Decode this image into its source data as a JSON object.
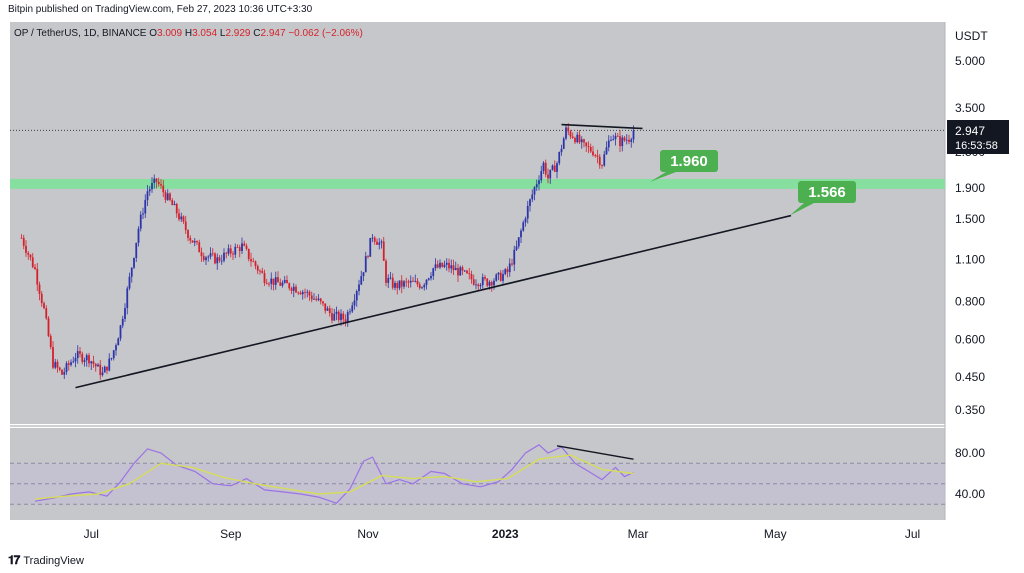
{
  "publisher": {
    "text": "Bitpin published on TradingView.com, Feb 27, 2023 10:36 UTC+3:30"
  },
  "symbol": {
    "name": "OP / TetherUS, 1D, BINANCE",
    "open_key": "O",
    "open": "3.009",
    "high_key": "H",
    "high": "3.054",
    "low_key": "L",
    "low": "2.929",
    "close_key": "C",
    "close": "2.947",
    "change": "−0.062 (−2.06%)"
  },
  "logo": {
    "text": "TradingView",
    "icon": "tradingview-logo-icon"
  },
  "colors": {
    "panel": "#c6c7ca",
    "up": "#2b34a8",
    "down": "#d4202c",
    "level": "#7ee19a",
    "label_green": "#4caf50",
    "rsi_band": "#c2bdd6",
    "rsi_line": "#9c72e6",
    "rsi_ma": "#d6dd5a"
  },
  "chart_data": [
    {
      "type": "candlestick",
      "title": "",
      "y_axis_unit": "USDT",
      "y_scale": "log",
      "ylim": [
        0.32,
        6.5
      ],
      "y_ticks": [
        "5.000",
        "3.500",
        "2.500",
        "1.900",
        "1.500",
        "1.100",
        "0.800",
        "0.600",
        "0.450",
        "0.350"
      ],
      "x_ticks": [
        "Jul",
        "Sep",
        "Nov",
        "2023",
        "Mar",
        "May",
        "Jul"
      ],
      "last_price": "2.947",
      "countdown": "16:53:58",
      "levels": [
        {
          "label": "1.960",
          "value": 1.96
        },
        {
          "label": "1.566",
          "value": 1.566
        }
      ],
      "trendlines": [
        "ascending support",
        "descending resistance"
      ],
      "series": [
        {
          "kind": "close_path",
          "points": [
            [
              "2022-05-31",
              1.3
            ],
            [
              "2022-06-06",
              1.02
            ],
            [
              "2022-06-10",
              0.75
            ],
            [
              "2022-06-14",
              0.5
            ],
            [
              "2022-06-18",
              0.46
            ],
            [
              "2022-06-24",
              0.53
            ],
            [
              "2022-06-30",
              0.52
            ],
            [
              "2022-07-06",
              0.46
            ],
            [
              "2022-07-10",
              0.52
            ],
            [
              "2022-07-14",
              0.66
            ],
            [
              "2022-07-18",
              0.95
            ],
            [
              "2022-07-22",
              1.4
            ],
            [
              "2022-07-26",
              1.86
            ],
            [
              "2022-07-30",
              2.0
            ],
            [
              "2022-08-03",
              1.8
            ],
            [
              "2022-08-08",
              1.58
            ],
            [
              "2022-08-14",
              1.3
            ],
            [
              "2022-08-20",
              1.14
            ],
            [
              "2022-08-26",
              1.1
            ],
            [
              "2022-09-02",
              1.18
            ],
            [
              "2022-09-06",
              1.22
            ],
            [
              "2022-09-10",
              1.1
            ],
            [
              "2022-09-16",
              0.96
            ],
            [
              "2022-09-22",
              0.92
            ],
            [
              "2022-09-28",
              0.9
            ],
            [
              "2022-10-04",
              0.86
            ],
            [
              "2022-10-10",
              0.8
            ],
            [
              "2022-10-16",
              0.72
            ],
            [
              "2022-10-22",
              0.7
            ],
            [
              "2022-10-26",
              0.84
            ],
            [
              "2022-10-30",
              1.03
            ],
            [
              "2022-11-03",
              1.33
            ],
            [
              "2022-11-07",
              1.22
            ],
            [
              "2022-11-09",
              0.95
            ],
            [
              "2022-11-13",
              0.9
            ],
            [
              "2022-11-19",
              0.92
            ],
            [
              "2022-11-25",
              0.91
            ],
            [
              "2022-11-30",
              1.03
            ],
            [
              "2022-12-06",
              1.05
            ],
            [
              "2022-12-12",
              1.0
            ],
            [
              "2022-12-18",
              0.94
            ],
            [
              "2022-12-24",
              0.93
            ],
            [
              "2022-12-29",
              0.96
            ],
            [
              "2023-01-02",
              1.0
            ],
            [
              "2023-01-06",
              1.2
            ],
            [
              "2023-01-10",
              1.55
            ],
            [
              "2023-01-14",
              1.9
            ],
            [
              "2023-01-18",
              2.28
            ],
            [
              "2023-01-20",
              2.05
            ],
            [
              "2023-01-24",
              2.3
            ],
            [
              "2023-01-28",
              2.95
            ],
            [
              "2023-02-01",
              2.8
            ],
            [
              "2023-02-05",
              2.6
            ],
            [
              "2023-02-09",
              2.52
            ],
            [
              "2023-02-13",
              2.3
            ],
            [
              "2023-02-17",
              2.85
            ],
            [
              "2023-02-21",
              2.7
            ],
            [
              "2023-02-25",
              2.78
            ],
            [
              "2023-02-27",
              2.947
            ]
          ]
        }
      ]
    },
    {
      "type": "line",
      "title": "",
      "ylim": [
        20,
        100
      ],
      "y_ticks": [
        "80.00",
        "40.00"
      ],
      "bands": [
        30,
        50,
        70
      ],
      "series": [
        {
          "kind": "rsi",
          "points": [
            [
              "2022-06-06",
              33
            ],
            [
              "2022-06-14",
              36
            ],
            [
              "2022-06-22",
              40
            ],
            [
              "2022-06-30",
              42
            ],
            [
              "2022-07-08",
              38
            ],
            [
              "2022-07-14",
              52
            ],
            [
              "2022-07-20",
              70
            ],
            [
              "2022-07-26",
              84
            ],
            [
              "2022-08-01",
              80
            ],
            [
              "2022-08-08",
              68
            ],
            [
              "2022-08-16",
              62
            ],
            [
              "2022-08-24",
              50
            ],
            [
              "2022-09-01",
              48
            ],
            [
              "2022-09-08",
              55
            ],
            [
              "2022-09-16",
              44
            ],
            [
              "2022-09-24",
              42
            ],
            [
              "2022-10-02",
              40
            ],
            [
              "2022-10-10",
              37
            ],
            [
              "2022-10-18",
              31
            ],
            [
              "2022-10-24",
              45
            ],
            [
              "2022-10-30",
              72
            ],
            [
              "2022-11-03",
              76
            ],
            [
              "2022-11-09",
              50
            ],
            [
              "2022-11-15",
              54
            ],
            [
              "2022-11-21",
              50
            ],
            [
              "2022-11-29",
              62
            ],
            [
              "2022-12-05",
              60
            ],
            [
              "2022-12-13",
              50
            ],
            [
              "2022-12-21",
              47
            ],
            [
              "2022-12-29",
              52
            ],
            [
              "2023-01-04",
              64
            ],
            [
              "2023-01-10",
              80
            ],
            [
              "2023-01-16",
              88
            ],
            [
              "2023-01-20",
              80
            ],
            [
              "2023-01-26",
              86
            ],
            [
              "2023-02-01",
              70
            ],
            [
              "2023-02-07",
              62
            ],
            [
              "2023-02-13",
              54
            ],
            [
              "2023-02-19",
              66
            ],
            [
              "2023-02-23",
              57
            ],
            [
              "2023-02-27",
              61
            ]
          ]
        },
        {
          "kind": "rsi_ma",
          "points": [
            [
              "2022-06-06",
              35
            ],
            [
              "2022-06-20",
              38
            ],
            [
              "2022-07-04",
              40
            ],
            [
              "2022-07-18",
              50
            ],
            [
              "2022-08-01",
              70
            ],
            [
              "2022-08-15",
              66
            ],
            [
              "2022-08-29",
              56
            ],
            [
              "2022-09-12",
              50
            ],
            [
              "2022-09-26",
              45
            ],
            [
              "2022-10-10",
              40
            ],
            [
              "2022-10-24",
              42
            ],
            [
              "2022-11-07",
              58
            ],
            [
              "2022-11-21",
              55
            ],
            [
              "2022-12-05",
              57
            ],
            [
              "2022-12-19",
              52
            ],
            [
              "2023-01-02",
              55
            ],
            [
              "2023-01-16",
              74
            ],
            [
              "2023-01-30",
              78
            ],
            [
              "2023-02-13",
              64
            ],
            [
              "2023-02-27",
              60
            ]
          ]
        }
      ]
    }
  ]
}
